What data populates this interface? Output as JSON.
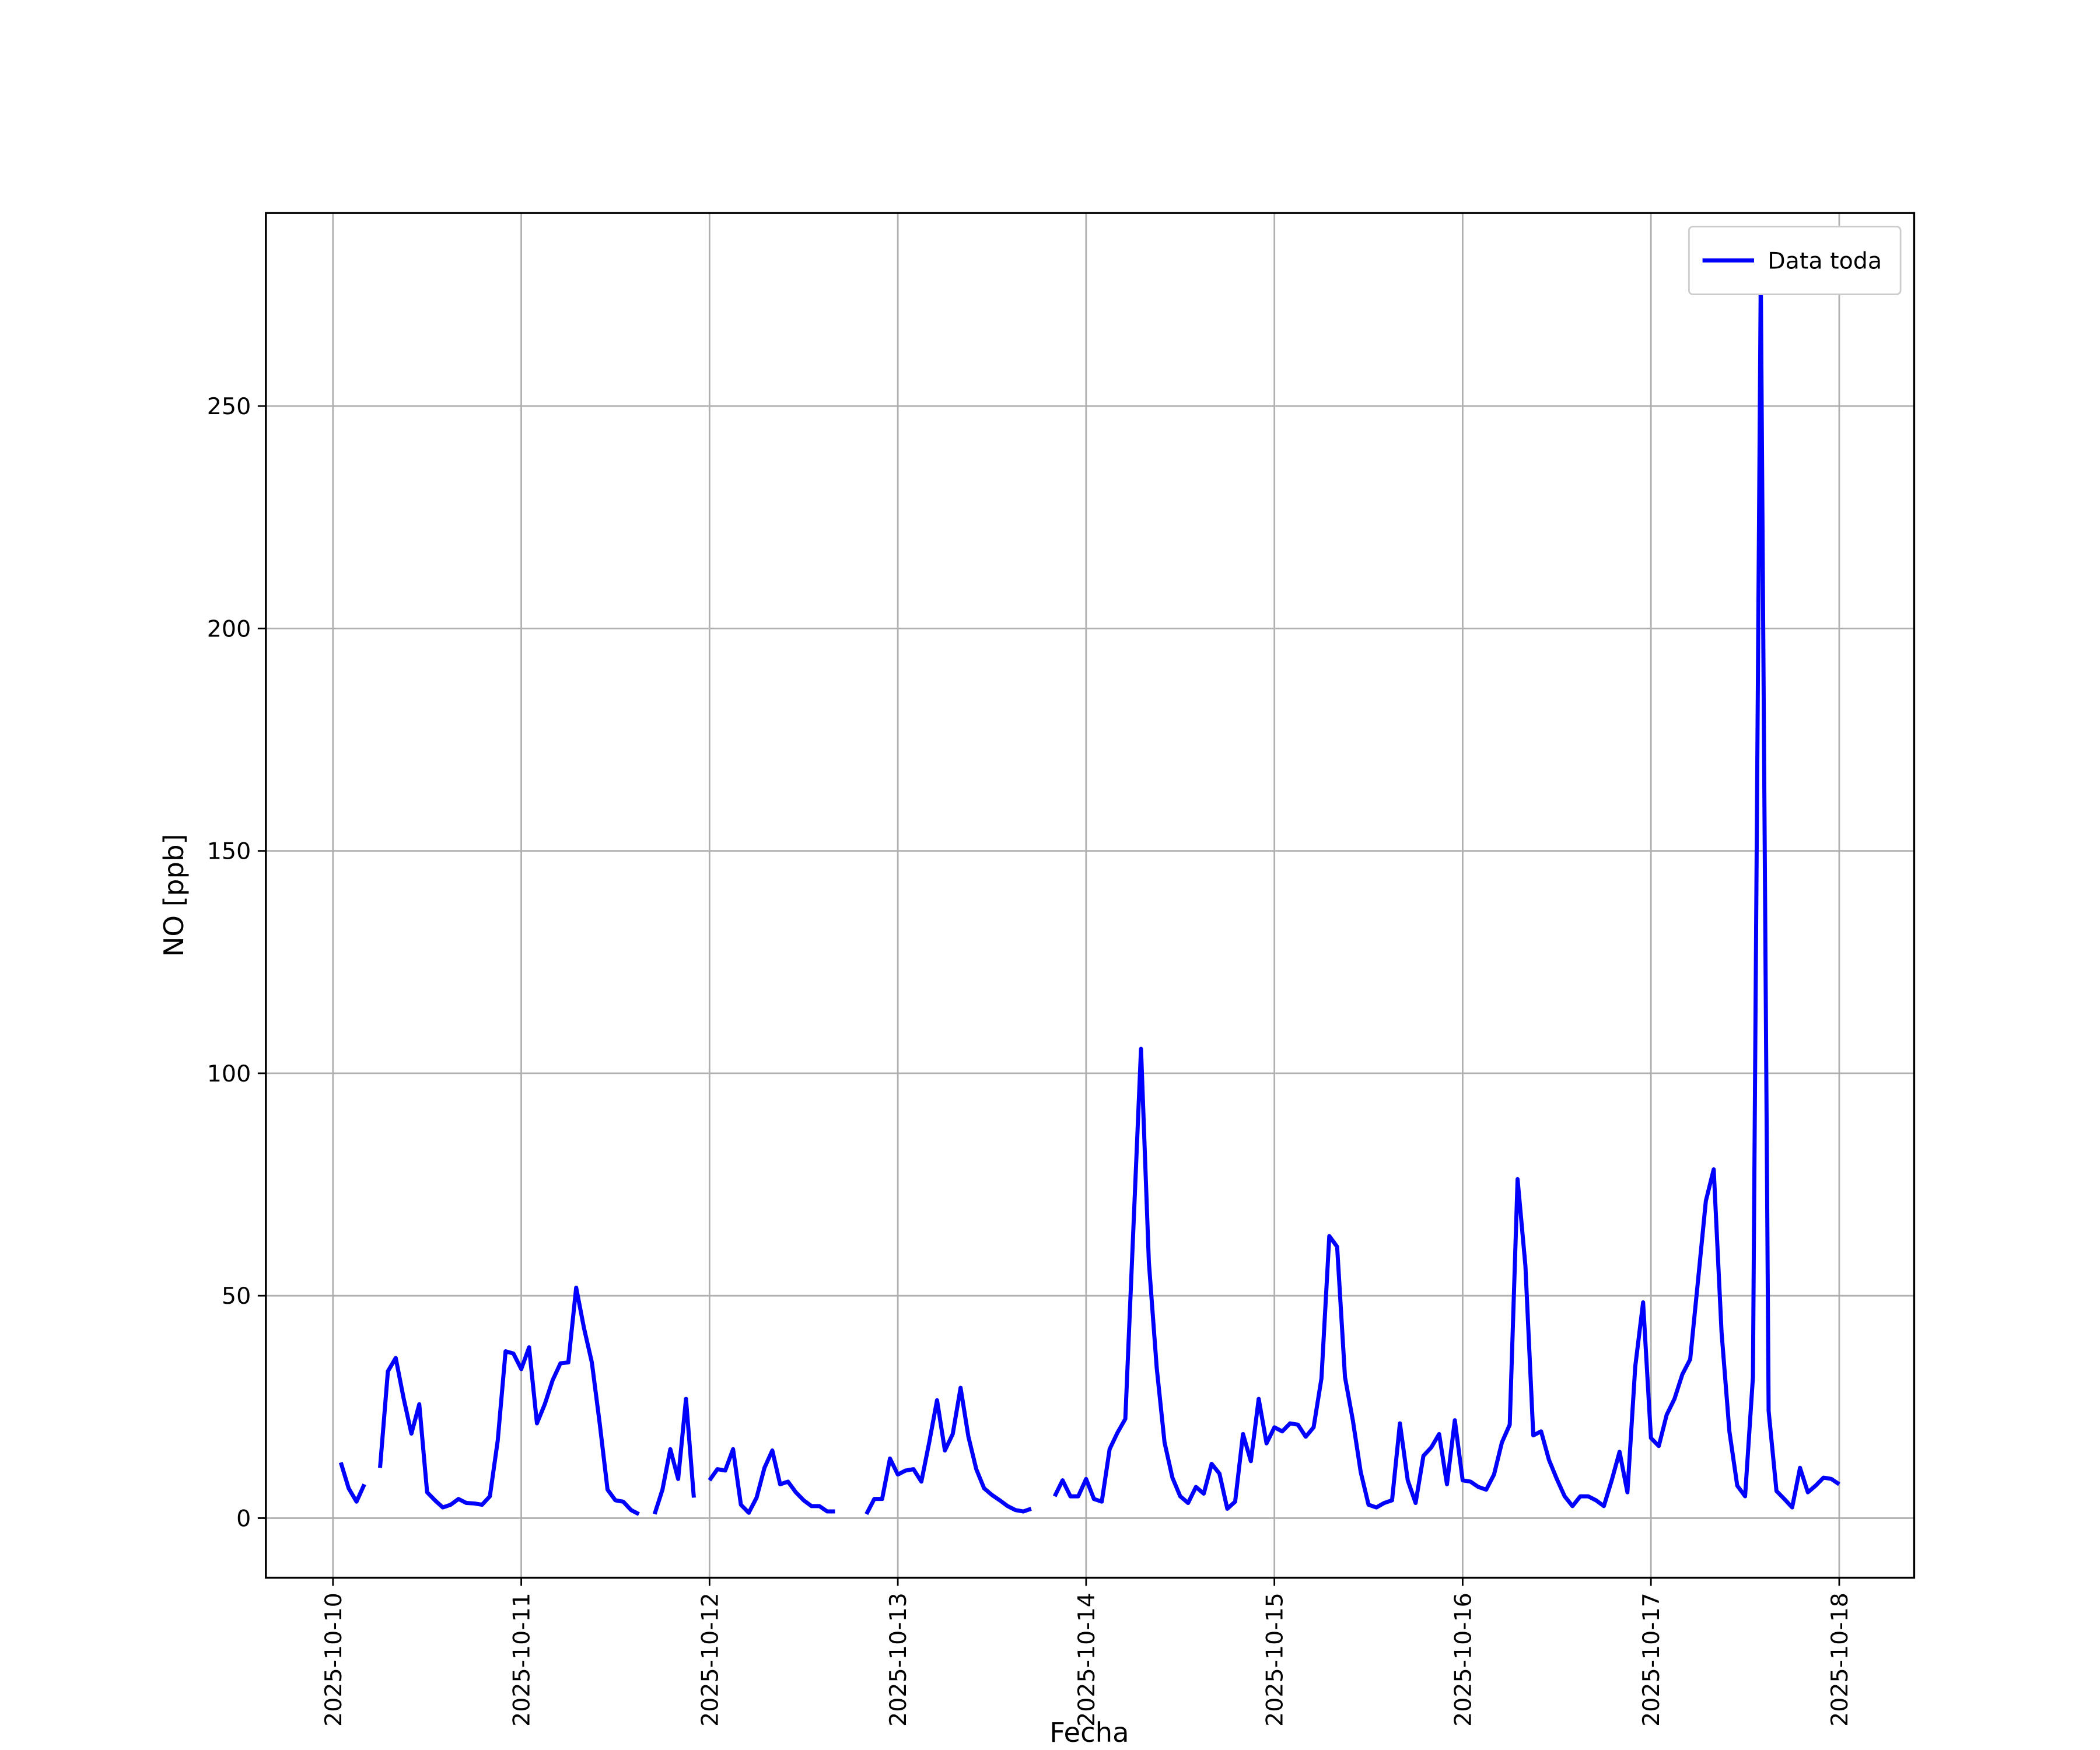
{
  "chart_data": {
    "type": "line",
    "xlabel": "Fecha",
    "ylabel": "NO [ppb]",
    "x": [
      1,
      2,
      3,
      4,
      5,
      6,
      7,
      8,
      9,
      10,
      11,
      12,
      13,
      14,
      15,
      16,
      17,
      18,
      19,
      20,
      21,
      22,
      23,
      24,
      25,
      26,
      27,
      28,
      29,
      30,
      31,
      32,
      33,
      34,
      35,
      36,
      37,
      38,
      39,
      40,
      41,
      42,
      43,
      44,
      45,
      46,
      47,
      48,
      49,
      50,
      51,
      52,
      53,
      54,
      55,
      56,
      57,
      58,
      59,
      60,
      61,
      62,
      63,
      64,
      65,
      66,
      67,
      68,
      69,
      70,
      71,
      72,
      73,
      74,
      75,
      76,
      77,
      78,
      79,
      80,
      81,
      82,
      83,
      84,
      85,
      86,
      87,
      88,
      89,
      90,
      91,
      92,
      93,
      94,
      95,
      96,
      97,
      98,
      99,
      100,
      101,
      102,
      103,
      104,
      105,
      106,
      107,
      108,
      109,
      110,
      111,
      112,
      113,
      114,
      115,
      116,
      117,
      118,
      119,
      120,
      121,
      122,
      123,
      124,
      125,
      126,
      127,
      128,
      129,
      130,
      131,
      132,
      133,
      134,
      135,
      136,
      137,
      138,
      139,
      140,
      141,
      142,
      143,
      144,
      145,
      146,
      147,
      148,
      149,
      150,
      151,
      152,
      153,
      154,
      155,
      156,
      157,
      158,
      159,
      160,
      161,
      162,
      163,
      164,
      165,
      166,
      167,
      168,
      169,
      170,
      171,
      172,
      173,
      174,
      175,
      176,
      177,
      178,
      179,
      180,
      181,
      182,
      183,
      184,
      185,
      186,
      187,
      188,
      189,
      190,
      191,
      192
    ],
    "series": [
      {
        "name": "Data toda",
        "color": "#0000ff",
        "values": [
          12.5,
          6.7,
          3.7,
          7.6,
          null,
          11.3,
          33,
          36,
          27,
          19,
          25.6,
          5.8,
          4,
          2.4,
          3,
          4.3,
          3.4,
          3.3,
          3,
          4.9,
          17.4,
          37.5,
          37,
          33.5,
          38.4,
          21.3,
          25.6,
          31,
          34.8,
          35,
          51.8,
          42.7,
          35,
          21.3,
          6.4,
          4,
          3.7,
          1.8,
          0.9,
          null,
          0.9,
          6.4,
          15.5,
          8.8,
          26.8,
          4.6,
          null,
          8.5,
          11,
          10.7,
          15.5,
          3,
          1.2,
          4.6,
          11.3,
          15.2,
          7.6,
          8.2,
          5.8,
          4,
          2.7,
          2.7,
          1.5,
          1.5,
          null,
          null,
          null,
          0.9,
          4.3,
          4.3,
          13.4,
          9.8,
          10.7,
          11,
          8.2,
          17,
          26.5,
          15.2,
          18.9,
          29.3,
          18.3,
          11,
          6.7,
          5.2,
          4,
          2.7,
          1.8,
          1.5,
          2.1,
          null,
          null,
          4.9,
          8.5,
          4.9,
          4.9,
          8.8,
          4.3,
          3.7,
          15.5,
          19.2,
          22.3,
          64,
          105.5,
          57.6,
          33.8,
          17,
          9.1,
          4.9,
          3.4,
          7,
          5.5,
          12.2,
          10,
          2.1,
          3.7,
          18.9,
          12.8,
          26.8,
          16.8,
          20.4,
          19.5,
          21.3,
          21,
          18.3,
          20.4,
          31.4,
          63.4,
          61,
          31.7,
          22,
          10.4,
          3,
          2.4,
          3.4,
          4,
          21.3,
          8.5,
          3.4,
          14,
          15.9,
          18.9,
          7.6,
          22,
          8.5,
          8.2,
          7,
          6.4,
          9.8,
          17,
          21,
          76.2,
          56.7,
          18.6,
          19.5,
          13.1,
          8.8,
          4.9,
          2.7,
          4.9,
          4.9,
          4,
          2.7,
          8.5,
          14.9,
          5.8,
          34.1,
          48.5,
          18,
          16.2,
          23.2,
          26.8,
          32.3,
          35.7,
          53.4,
          71.3,
          78.4,
          41.8,
          19.5,
          7.3,
          4.9,
          31.7,
          279.3,
          24.1,
          6.1,
          4.3,
          2.4,
          11.3,
          5.8,
          7.3,
          9.1,
          8.8,
          7.6
        ]
      }
    ],
    "xlim": [
      -8.55,
      201.55
    ],
    "xticks": [
      {
        "value": 0,
        "label": "2025-10-10"
      },
      {
        "value": 24,
        "label": "2025-10-11"
      },
      {
        "value": 48,
        "label": "2025-10-12"
      },
      {
        "value": 72,
        "label": "2025-10-13"
      },
      {
        "value": 96,
        "label": "2025-10-14"
      },
      {
        "value": 120,
        "label": "2025-10-15"
      },
      {
        "value": 144,
        "label": "2025-10-16"
      },
      {
        "value": 168,
        "label": "2025-10-17"
      },
      {
        "value": 192,
        "label": "2025-10-18"
      }
    ],
    "ylim": [
      -13.4,
      293.4
    ],
    "yticks": [
      0,
      50,
      100,
      150,
      200,
      250
    ],
    "grid": true,
    "legend": "upper right"
  }
}
